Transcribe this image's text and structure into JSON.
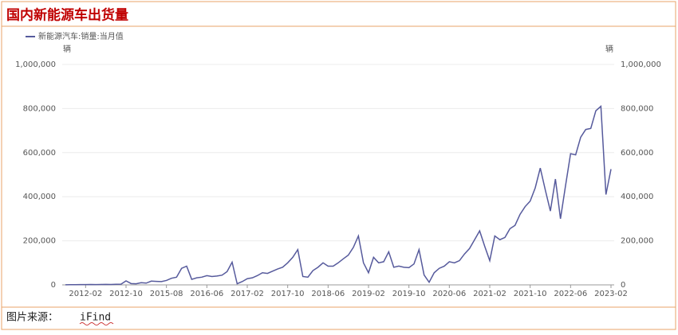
{
  "header": {
    "title": "国内新能源车出货量"
  },
  "chart_data": {
    "type": "line",
    "legend_position": "top-left",
    "ylabel": "辆",
    "y2label": "辆",
    "categories": [
      null,
      null,
      null,
      null,
      "2012-02",
      null,
      null,
      null,
      null,
      null,
      null,
      null,
      "2012-10",
      null,
      null,
      null,
      null,
      null,
      null,
      null,
      "2015-08",
      null,
      null,
      null,
      null,
      null,
      null,
      null,
      "2016-06",
      null,
      null,
      null,
      null,
      null,
      null,
      null,
      "2017-02",
      null,
      null,
      null,
      null,
      null,
      null,
      null,
      "2017-10",
      null,
      null,
      null,
      null,
      null,
      null,
      null,
      "2018-06",
      null,
      null,
      null,
      null,
      null,
      null,
      null,
      "2019-02",
      null,
      null,
      null,
      null,
      null,
      null,
      null,
      "2019-10",
      null,
      null,
      null,
      null,
      null,
      null,
      null,
      "2020-06",
      null,
      null,
      null,
      null,
      null,
      null,
      null,
      "2021-02",
      null,
      null,
      null,
      null,
      null,
      null,
      null,
      "2021-10",
      null,
      null,
      null,
      null,
      null,
      null,
      null,
      "2022-06",
      null,
      null,
      null,
      null,
      null,
      null,
      null,
      "2023-02"
    ],
    "series": [
      {
        "name": "新能源汽车:销量:当月值",
        "color": "#565a9c",
        "values": [
          500,
          800,
          1000,
          1200,
          1500,
          1800,
          1500,
          2000,
          2200,
          1800,
          2500,
          3000,
          18000,
          6000,
          5000,
          10000,
          8000,
          17000,
          16000,
          15000,
          20000,
          30000,
          35000,
          75000,
          85000,
          25000,
          32000,
          35000,
          42000,
          38000,
          40000,
          44000,
          60000,
          103000,
          5000,
          15000,
          28000,
          32000,
          42000,
          55000,
          52000,
          62000,
          72000,
          80000,
          100000,
          125000,
          160000,
          38000,
          35000,
          65000,
          80000,
          100000,
          85000,
          85000,
          100000,
          118000,
          135000,
          170000,
          222000,
          100000,
          55000,
          125000,
          100000,
          105000,
          150000,
          80000,
          85000,
          80000,
          78000,
          95000,
          160000,
          45000,
          12000,
          55000,
          75000,
          85000,
          105000,
          100000,
          110000,
          140000,
          165000,
          205000,
          245000,
          175000,
          110000,
          222000,
          205000,
          215000,
          255000,
          270000,
          320000,
          355000,
          380000,
          440000,
          530000,
          430000,
          335000,
          480000,
          300000,
          450000,
          595000,
          590000,
          670000,
          705000,
          710000,
          790000,
          810000,
          410000,
          525000
        ]
      }
    ],
    "ylim": [
      0,
      1000000
    ],
    "yticks": [
      0,
      {
        "value": 200000,
        "label": "200,000"
      },
      {
        "value": 400000,
        "label": "400,000"
      },
      {
        "value": 600000,
        "label": "600,000"
      },
      {
        "value": 800000,
        "label": "800,000"
      },
      {
        "value": 1000000,
        "label": "1,000,000"
      }
    ],
    "y2lim": [
      0,
      1000000
    ],
    "y2ticks": [
      0,
      {
        "value": 200000,
        "label": "200,000"
      },
      {
        "value": 400000,
        "label": "400,000"
      },
      {
        "value": 600000,
        "label": "600,000"
      },
      {
        "value": 800000,
        "label": "800,000"
      },
      {
        "value": 1000000,
        "label": "1,000,000"
      }
    ],
    "grid": true
  },
  "footer": {
    "source_label": "图片来源：",
    "source": "iFind"
  }
}
